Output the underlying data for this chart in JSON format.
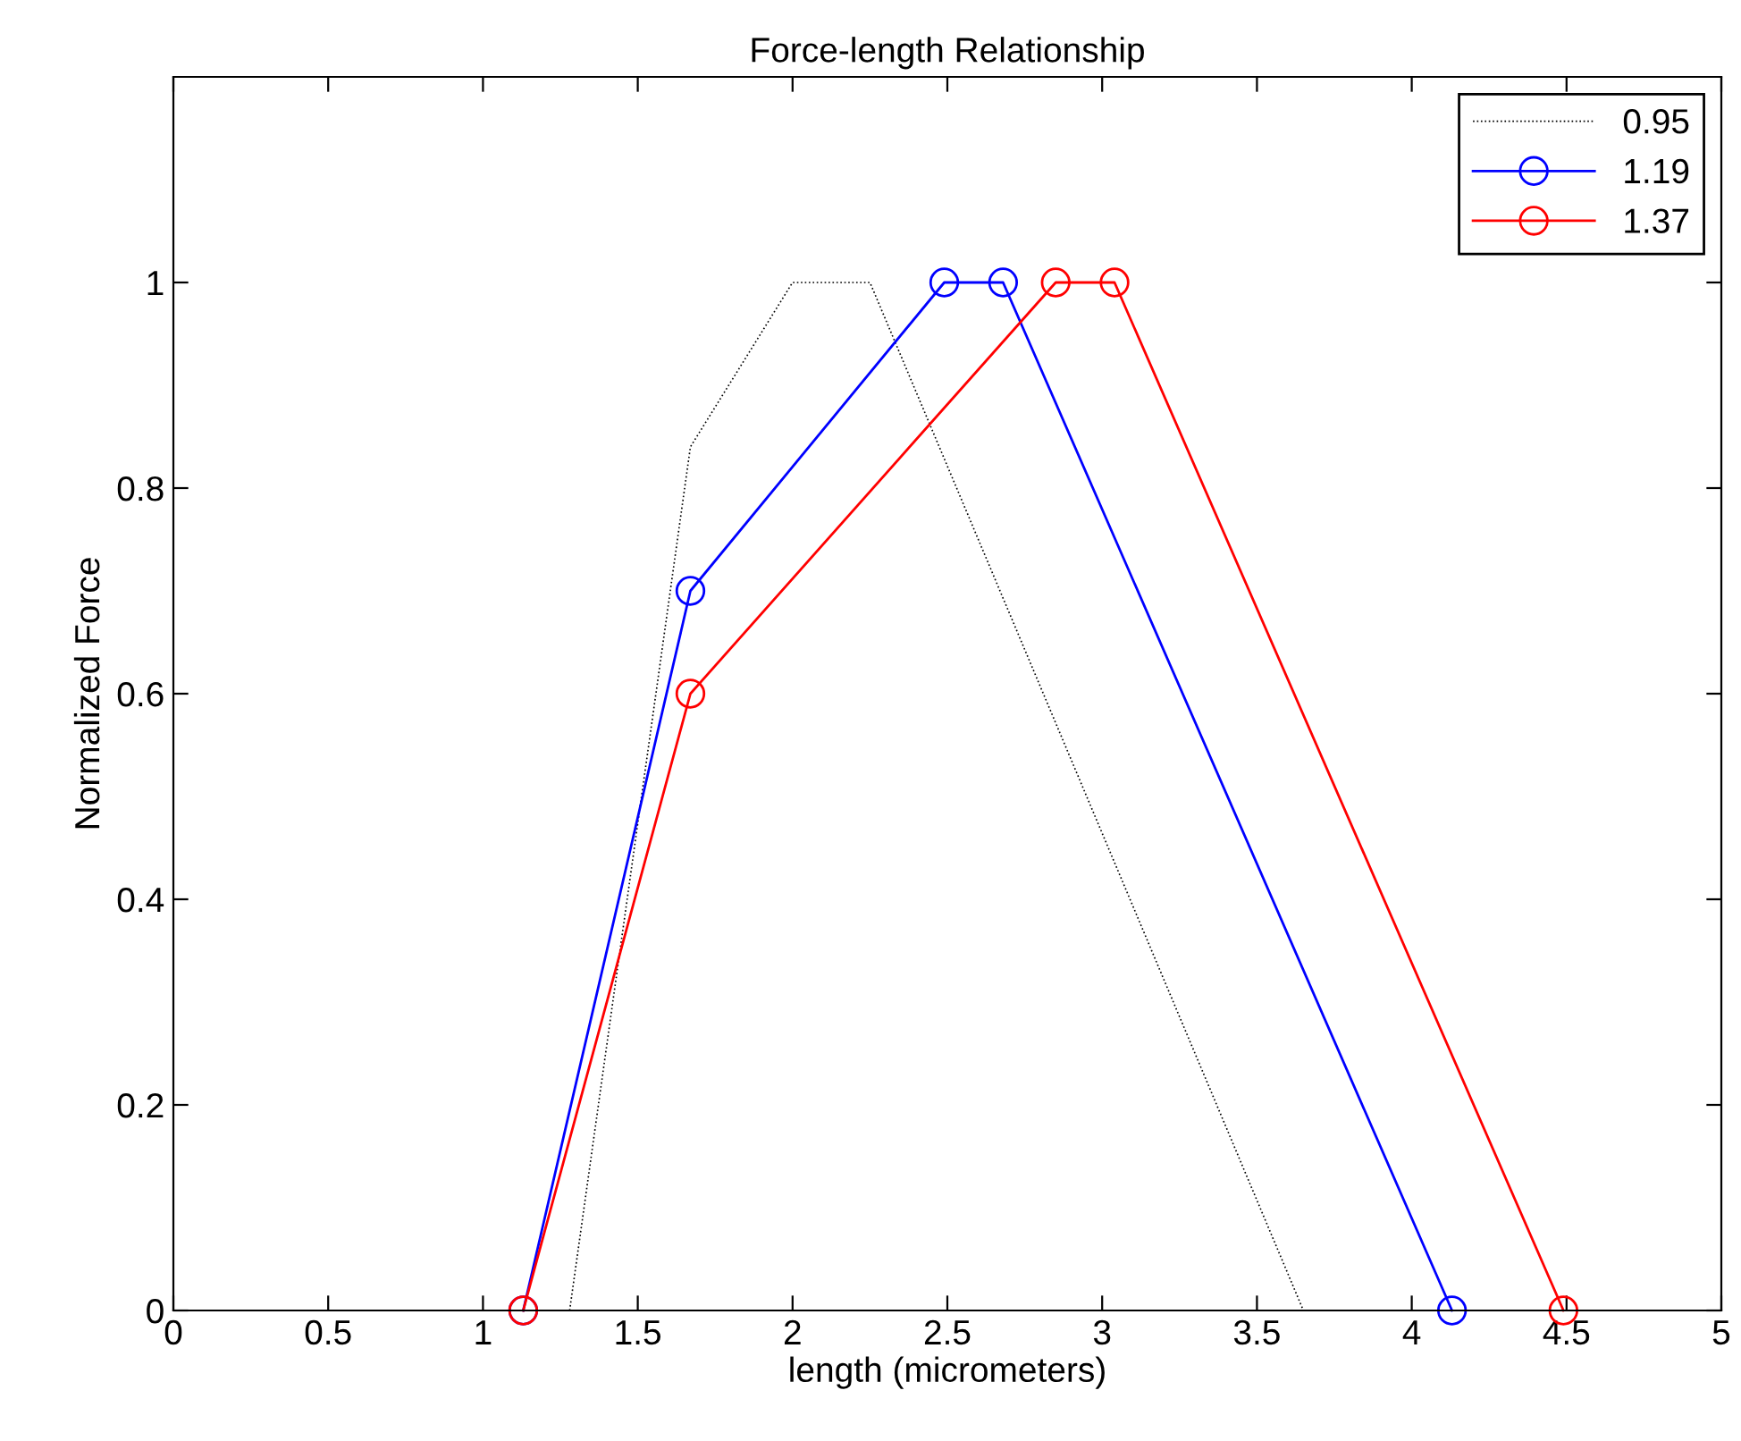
{
  "chart_data": {
    "type": "line",
    "title": "Force-length Relationship",
    "xlabel": "length (micrometers)",
    "ylabel": "Normalized Force",
    "xlim": [
      0,
      5
    ],
    "ylim": [
      0,
      1.2
    ],
    "xticks": [
      0,
      0.5,
      1,
      1.5,
      2,
      2.5,
      3,
      3.5,
      4,
      4.5,
      5
    ],
    "yticks": [
      0,
      0.2,
      0.4,
      0.6,
      0.8,
      1
    ],
    "grid": false,
    "legend": "top right",
    "series": [
      {
        "name": "0.95",
        "color": "#000000",
        "x": [
          1.28,
          1.67,
          2.0,
          2.25,
          3.65
        ],
        "values": [
          0,
          0.84,
          1,
          1,
          0
        ],
        "marker": "none",
        "line_style": "dotted"
      },
      {
        "name": "1.19",
        "color": "#0000ff",
        "x": [
          1.13,
          1.67,
          2.49,
          2.68,
          4.13
        ],
        "values": [
          0,
          0.7,
          1,
          1,
          0
        ],
        "marker": "circle",
        "line_style": "solid"
      },
      {
        "name": "1.37",
        "color": "#ff0000",
        "x": [
          1.13,
          1.67,
          2.85,
          3.04,
          4.49
        ],
        "values": [
          0,
          0.6,
          1,
          1,
          0
        ],
        "marker": "circle",
        "line_style": "solid"
      }
    ]
  }
}
